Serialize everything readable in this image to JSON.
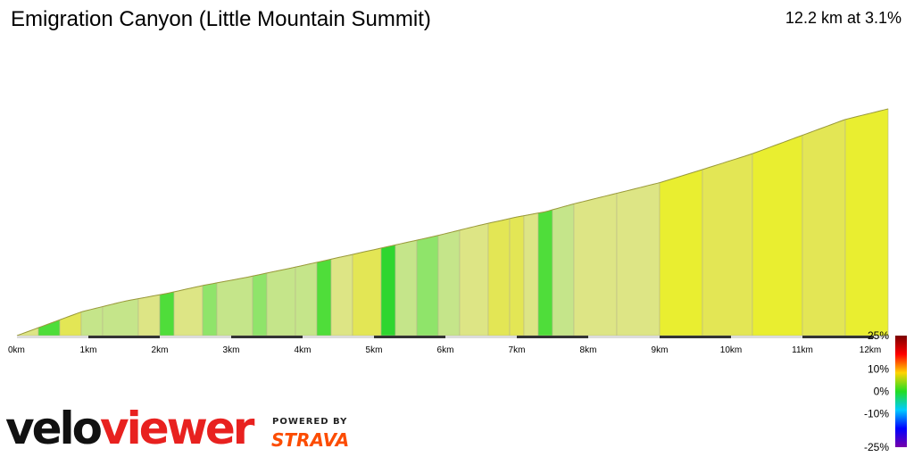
{
  "header": {
    "title": "Emigration Canyon (Little Mountain Summit)",
    "summary": "12.2 km at 3.1%"
  },
  "branding": {
    "logo_part1": "velo",
    "logo_part2": "viewer",
    "powered_by": "POWERED BY",
    "strava": "STRAVA",
    "logo_color": "#111111",
    "logo_accent": "#e8211f",
    "strava_color": "#fc4c02"
  },
  "chart_data": {
    "type": "area",
    "title": "Emigration Canyon (Little Mountain Summit)",
    "subtitle": "12.2 km at 3.1%",
    "xlabel": "",
    "ylabel": "",
    "xlim": [
      0,
      12.2
    ],
    "x_unit": "km",
    "x_ticks": [
      "0km",
      "1km",
      "2km",
      "3km",
      "4km",
      "5km",
      "6km",
      "7km",
      "8km",
      "9km",
      "10km",
      "11km",
      "12km"
    ],
    "grid": false,
    "profile": {
      "distance_km": [
        0,
        0.2,
        0.5,
        0.9,
        1.5,
        2.1,
        2.6,
        3.2,
        3.9,
        4.4,
        4.9,
        5.4,
        5.9,
        6.5,
        7.0,
        7.4,
        7.8,
        8.4,
        9.0,
        9.6,
        10.3,
        11.0,
        11.6,
        12.2
      ],
      "relative_elevation": [
        0,
        0.02,
        0.05,
        0.09,
        0.13,
        0.16,
        0.19,
        0.22,
        0.26,
        0.29,
        0.32,
        0.35,
        0.38,
        0.42,
        0.45,
        0.47,
        0.5,
        0.54,
        0.58,
        0.63,
        0.69,
        0.76,
        0.82,
        0.86
      ]
    },
    "segments": [
      {
        "start_km": 0.0,
        "end_km": 0.3,
        "grade_pct": 4
      },
      {
        "start_km": 0.3,
        "end_km": 0.6,
        "grade_pct": 1
      },
      {
        "start_km": 0.6,
        "end_km": 0.9,
        "grade_pct": 5
      },
      {
        "start_km": 0.9,
        "end_km": 1.2,
        "grade_pct": 3
      },
      {
        "start_km": 1.2,
        "end_km": 1.7,
        "grade_pct": 3
      },
      {
        "start_km": 1.7,
        "end_km": 2.0,
        "grade_pct": 4
      },
      {
        "start_km": 2.0,
        "end_km": 2.2,
        "grade_pct": 1
      },
      {
        "start_km": 2.2,
        "end_km": 2.6,
        "grade_pct": 4
      },
      {
        "start_km": 2.6,
        "end_km": 2.8,
        "grade_pct": 2
      },
      {
        "start_km": 2.8,
        "end_km": 3.3,
        "grade_pct": 3
      },
      {
        "start_km": 3.3,
        "end_km": 3.5,
        "grade_pct": 2
      },
      {
        "start_km": 3.5,
        "end_km": 3.9,
        "grade_pct": 3
      },
      {
        "start_km": 3.9,
        "end_km": 4.2,
        "grade_pct": 3
      },
      {
        "start_km": 4.2,
        "end_km": 4.4,
        "grade_pct": 1
      },
      {
        "start_km": 4.4,
        "end_km": 4.7,
        "grade_pct": 4
      },
      {
        "start_km": 4.7,
        "end_km": 5.1,
        "grade_pct": 5
      },
      {
        "start_km": 5.1,
        "end_km": 5.3,
        "grade_pct": 0
      },
      {
        "start_km": 5.3,
        "end_km": 5.6,
        "grade_pct": 3
      },
      {
        "start_km": 5.6,
        "end_km": 5.9,
        "grade_pct": 2
      },
      {
        "start_km": 5.9,
        "end_km": 6.2,
        "grade_pct": 3
      },
      {
        "start_km": 6.2,
        "end_km": 6.6,
        "grade_pct": 4
      },
      {
        "start_km": 6.6,
        "end_km": 6.9,
        "grade_pct": 5
      },
      {
        "start_km": 6.9,
        "end_km": 7.1,
        "grade_pct": 5
      },
      {
        "start_km": 7.1,
        "end_km": 7.3,
        "grade_pct": 4
      },
      {
        "start_km": 7.3,
        "end_km": 7.5,
        "grade_pct": 1
      },
      {
        "start_km": 7.5,
        "end_km": 7.8,
        "grade_pct": 3
      },
      {
        "start_km": 7.8,
        "end_km": 8.4,
        "grade_pct": 4
      },
      {
        "start_km": 8.4,
        "end_km": 9.0,
        "grade_pct": 4
      },
      {
        "start_km": 9.0,
        "end_km": 9.6,
        "grade_pct": 6
      },
      {
        "start_km": 9.6,
        "end_km": 10.3,
        "grade_pct": 5
      },
      {
        "start_km": 10.3,
        "end_km": 11.0,
        "grade_pct": 6
      },
      {
        "start_km": 11.0,
        "end_km": 11.6,
        "grade_pct": 5
      },
      {
        "start_km": 11.6,
        "end_km": 12.2,
        "grade_pct": 6
      }
    ],
    "grade_legend": {
      "labels": [
        "25%",
        "10%",
        "0%",
        "-10%",
        "-25%"
      ],
      "values": [
        25,
        10,
        0,
        -10,
        -25
      ],
      "colors": [
        "#7a0000",
        "#ff0000",
        "#ffd400",
        "#22dd22",
        "#00ccff",
        "#0000ff",
        "#7700aa"
      ]
    }
  }
}
